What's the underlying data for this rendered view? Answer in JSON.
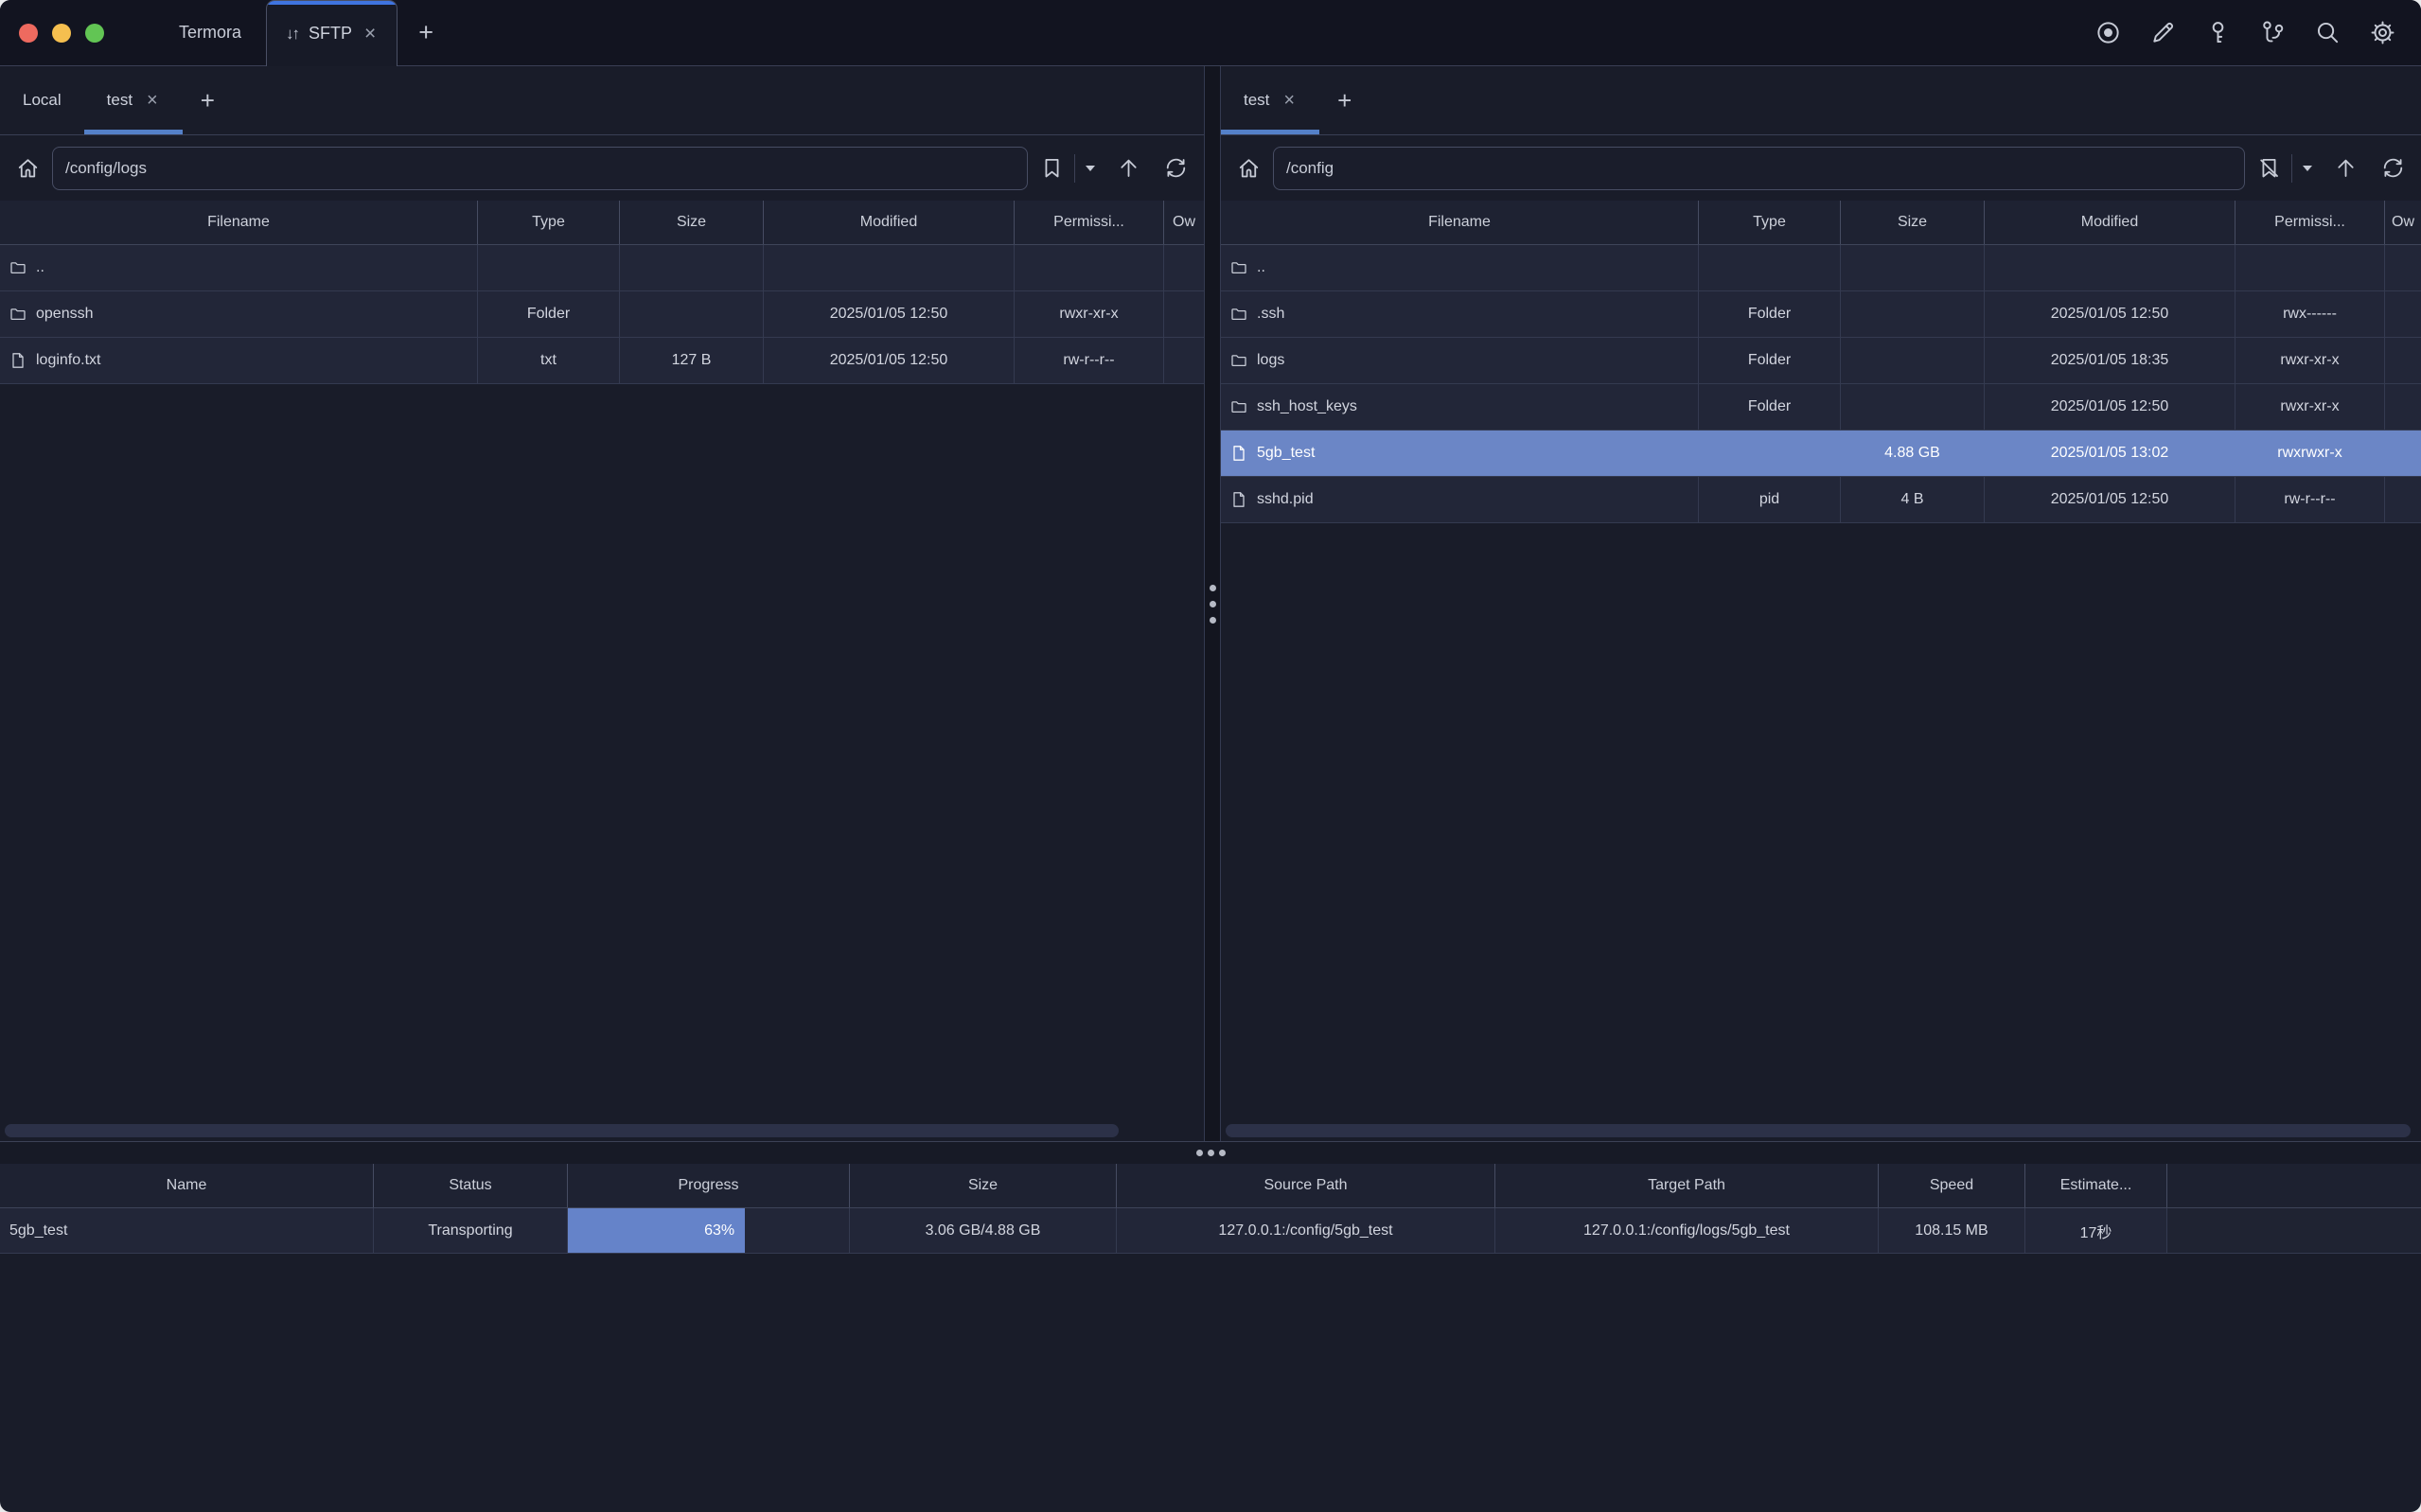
{
  "titlebar": {
    "traffic_lights": {
      "close": "#ee6a5f",
      "minimize": "#f5bf4f",
      "zoom": "#62c554"
    },
    "app": {
      "icon": "home-icon",
      "label": "Termora"
    },
    "active_tab": {
      "icon": "transfer-arrows-icon",
      "icon_glyph": "↓↑",
      "label": "SFTP",
      "close_glyph": "×"
    },
    "new_tab_glyph": "+",
    "right_icons": [
      "record-icon",
      "pencil-icon",
      "key-icon",
      "branch-icon",
      "search-icon",
      "gear-icon"
    ]
  },
  "left_pane": {
    "tabs": [
      {
        "label": "Local",
        "active": false,
        "closable": false,
        "close_glyph": "×"
      },
      {
        "label": "test",
        "active": true,
        "closable": true,
        "close_glyph": "×"
      }
    ],
    "new_tab_glyph": "+",
    "path": "/config/logs",
    "bookmark_icon": "bookmark-icon",
    "columns": [
      "Filename",
      "Type",
      "Size",
      "Modified",
      "Permissi...",
      "Ow"
    ],
    "rows": [
      {
        "icon": "folder-icon",
        "name": "..",
        "type": "",
        "size": "",
        "modified": "",
        "permissions": "",
        "owner": "",
        "selected": false
      },
      {
        "icon": "folder-icon",
        "name": "openssh",
        "type": "Folder",
        "size": "",
        "modified": "2025/01/05 12:50",
        "permissions": "rwxr-xr-x",
        "owner": "",
        "selected": false
      },
      {
        "icon": "file-icon",
        "name": "loginfo.txt",
        "type": "txt",
        "size": "127 B",
        "modified": "2025/01/05 12:50",
        "permissions": "rw-r--r--",
        "owner": "",
        "selected": false
      }
    ]
  },
  "right_pane": {
    "tabs": [
      {
        "label": "test",
        "active": true,
        "closable": true,
        "close_glyph": "×"
      }
    ],
    "new_tab_glyph": "+",
    "path": "/config",
    "bookmark_icon": "bookmark-slash-icon",
    "columns": [
      "Filename",
      "Type",
      "Size",
      "Modified",
      "Permissi...",
      "Ow"
    ],
    "rows": [
      {
        "icon": "folder-icon",
        "name": "..",
        "type": "",
        "size": "",
        "modified": "",
        "permissions": "",
        "owner": "",
        "selected": false
      },
      {
        "icon": "folder-icon",
        "name": ".ssh",
        "type": "Folder",
        "size": "",
        "modified": "2025/01/05 12:50",
        "permissions": "rwx------",
        "owner": "",
        "selected": false
      },
      {
        "icon": "folder-icon",
        "name": "logs",
        "type": "Folder",
        "size": "",
        "modified": "2025/01/05 18:35",
        "permissions": "rwxr-xr-x",
        "owner": "",
        "selected": false
      },
      {
        "icon": "folder-icon",
        "name": "ssh_host_keys",
        "type": "Folder",
        "size": "",
        "modified": "2025/01/05 12:50",
        "permissions": "rwxr-xr-x",
        "owner": "",
        "selected": false
      },
      {
        "icon": "file-icon",
        "name": "5gb_test",
        "type": "",
        "size": "4.88 GB",
        "modified": "2025/01/05 13:02",
        "permissions": "rwxrwxr-x",
        "owner": "",
        "selected": true
      },
      {
        "icon": "file-icon",
        "name": "sshd.pid",
        "type": "pid",
        "size": "4 B",
        "modified": "2025/01/05 12:50",
        "permissions": "rw-r--r--",
        "owner": "",
        "selected": false
      }
    ]
  },
  "transfers": {
    "columns": [
      "Name",
      "Status",
      "Progress",
      "Size",
      "Source Path",
      "Target Path",
      "Speed",
      "Estimate..."
    ],
    "rows": [
      {
        "name": "5gb_test",
        "status": "Transporting",
        "progress_pct": 63,
        "progress_label": "63%",
        "size": "3.06 GB/4.88 GB",
        "source": "127.0.0.1:/config/5gb_test",
        "target": "127.0.0.1:/config/logs/5gb_test",
        "speed": "108.15 MB",
        "estimate": "17秒"
      }
    ]
  },
  "colors": {
    "accent": "#3f74e0",
    "tab_underline": "#5480c8",
    "selection": "#6b86c6",
    "progress_fill": "#6583c9"
  }
}
